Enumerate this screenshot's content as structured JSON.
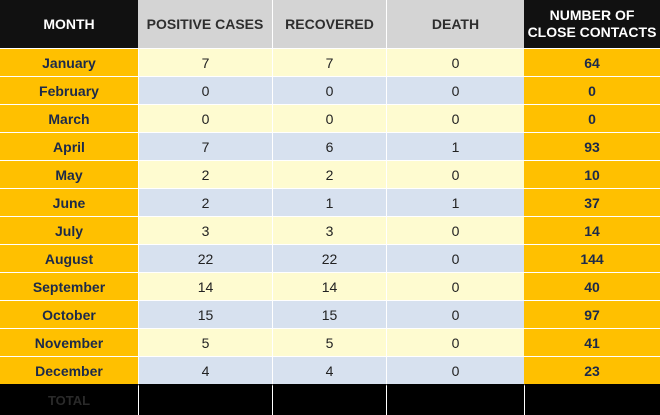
{
  "headers": {
    "month": "MONTH",
    "positive": "POSITIVE CASES",
    "recovered": "RECOVERED",
    "death": "DEATH",
    "close_line1": "NUMBER OF",
    "close_line2": "CLOSE CONTACTS"
  },
  "rows": [
    {
      "month": "January",
      "positive": "7",
      "recovered": "7",
      "death": "0",
      "close": "64"
    },
    {
      "month": "February",
      "positive": "0",
      "recovered": "0",
      "death": "0",
      "close": "0"
    },
    {
      "month": "March",
      "positive": "0",
      "recovered": "0",
      "death": "0",
      "close": "0"
    },
    {
      "month": "April",
      "positive": "7",
      "recovered": "6",
      "death": "1",
      "close": "93"
    },
    {
      "month": "May",
      "positive": "2",
      "recovered": "2",
      "death": "0",
      "close": "10"
    },
    {
      "month": "June",
      "positive": "2",
      "recovered": "1",
      "death": "1",
      "close": "37"
    },
    {
      "month": "July",
      "positive": "3",
      "recovered": "3",
      "death": "0",
      "close": "14"
    },
    {
      "month": "August",
      "positive": "22",
      "recovered": "22",
      "death": "0",
      "close": "144"
    },
    {
      "month": "September",
      "positive": "14",
      "recovered": "14",
      "death": "0",
      "close": "40"
    },
    {
      "month": "October",
      "positive": "15",
      "recovered": "15",
      "death": "0",
      "close": "97"
    },
    {
      "month": "November",
      "positive": "5",
      "recovered": "5",
      "death": "0",
      "close": "41"
    },
    {
      "month": "December",
      "positive": "4",
      "recovered": "4",
      "death": "0",
      "close": "23"
    }
  ],
  "total_label": "TOTAL",
  "colors": {
    "month_column": "#ffc000",
    "row_light": "#fefbd0",
    "row_blue": "#d7e1ef",
    "header_gray": "#d4d4d4",
    "header_dark": "#111111"
  }
}
